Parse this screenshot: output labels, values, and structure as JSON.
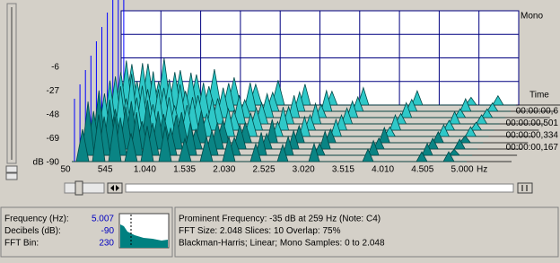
{
  "spectrum": {
    "channel": "Mono",
    "time_axis_label": "Time",
    "y_labels": [
      "-6",
      "-27",
      "-48",
      "-69",
      "dB -90"
    ],
    "x_labels": [
      "50",
      "545",
      "1.040",
      "1.535",
      "2.030",
      "2.525",
      "3.020",
      "3.515",
      "4.010",
      "4.505",
      "5.000"
    ],
    "x_unit": "Hz",
    "time_labels": [
      "00:00:00,6",
      "00:00:00,501",
      "00:00:00,334",
      "00:00:00,167"
    ]
  },
  "info": {
    "rows": [
      {
        "label": "Frequency (Hz):",
        "value": "5.007"
      },
      {
        "label": "Decibels (dB):",
        "value": "-90"
      },
      {
        "label": "FFT Bin:",
        "value": "230"
      }
    ]
  },
  "details": {
    "lines": [
      "Prominent Frequency: -35 dB at 259 Hz (Note: C4)",
      "FFT Size: 2.048  Slices: 10  Overlap: 75%",
      "Blackman-Harris; Linear; Mono  Samples: 0 to 2.048"
    ]
  }
}
